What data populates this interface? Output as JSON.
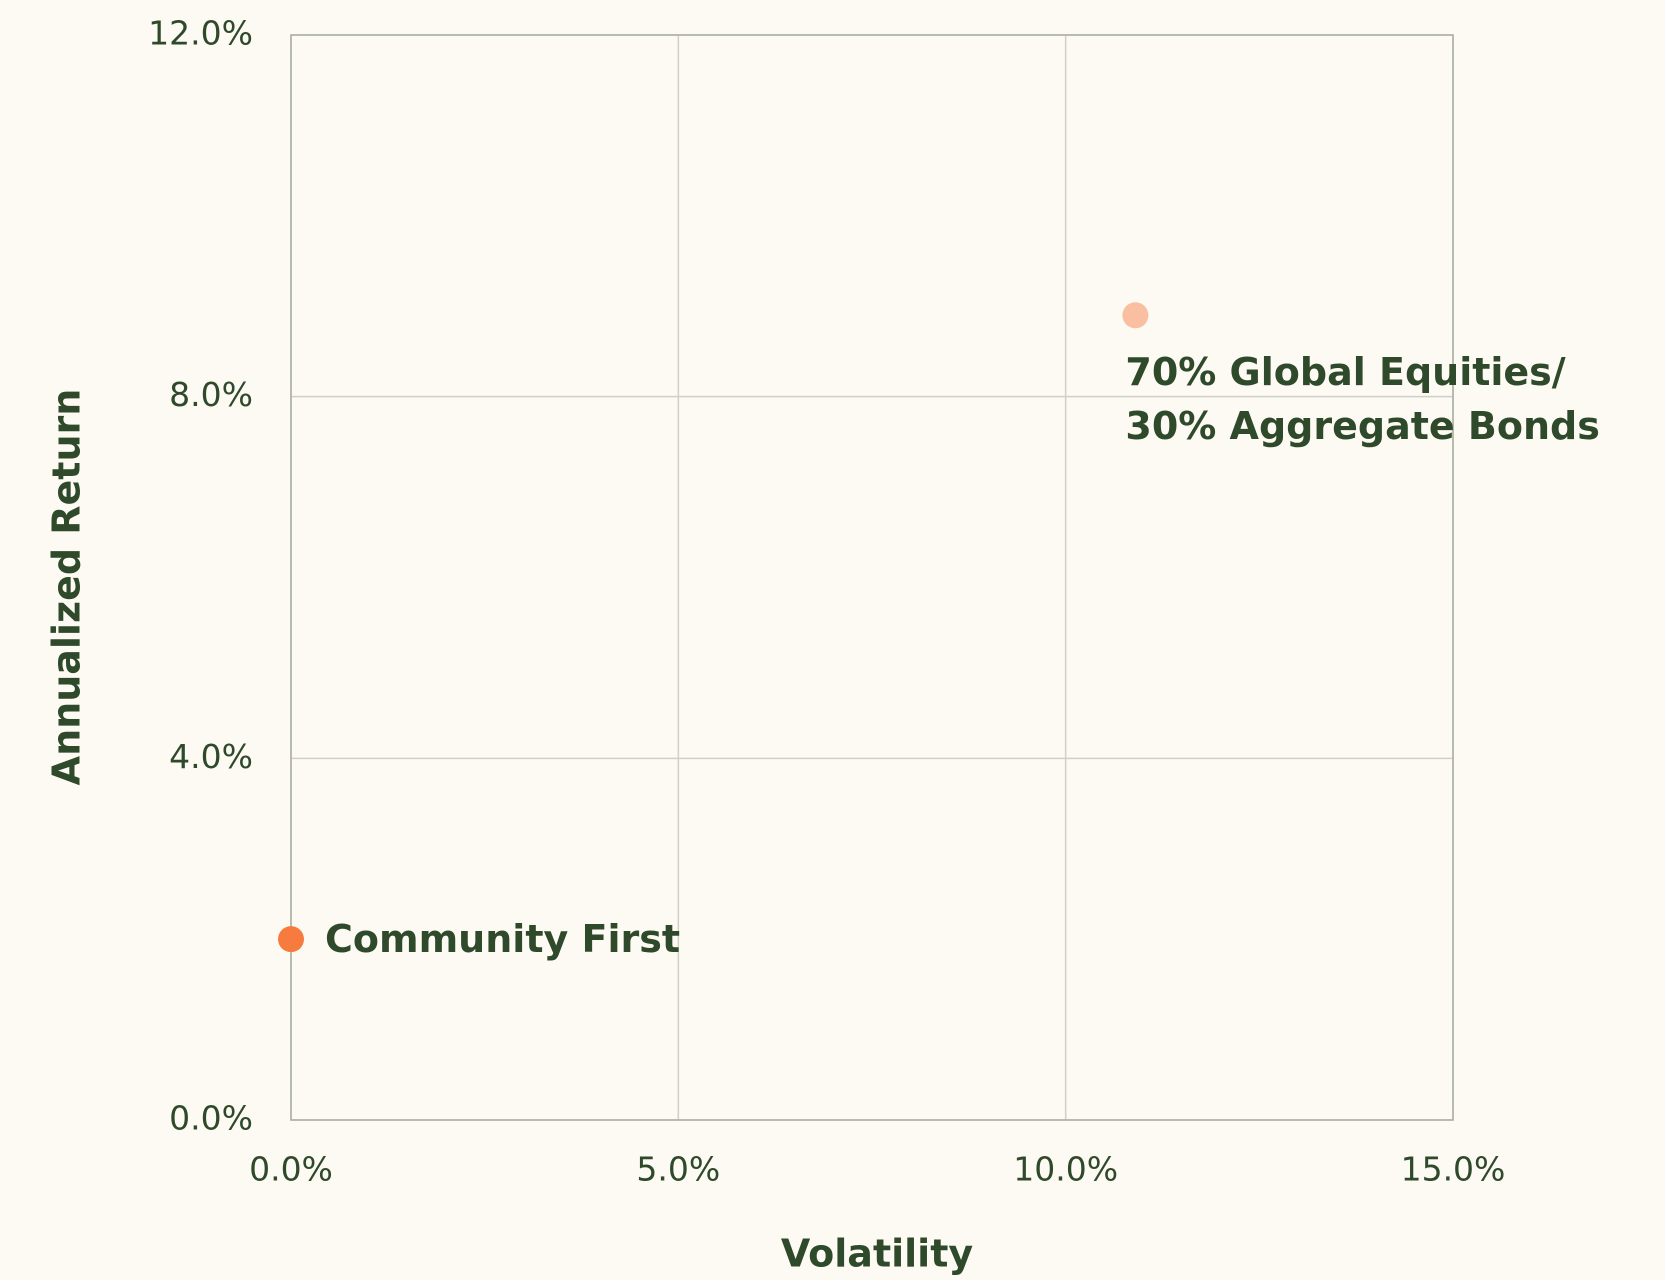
{
  "chart_data": {
    "type": "scatter",
    "xlabel": "Volatility",
    "ylabel": "Annualized Return",
    "series": [
      {
        "name": "Community First",
        "color": "#f77a3f",
        "x": [
          0.0
        ],
        "values": [
          2.0
        ]
      },
      {
        "name": "70% Global Equities/\n30% Aggregate Bonds",
        "color": "#f9bfa0",
        "x": [
          10.9
        ],
        "values": [
          8.9
        ]
      }
    ],
    "xlim": [
      0,
      15
    ],
    "xticks": [
      {
        "value": 0,
        "label": "0.0%"
      },
      {
        "value": 5,
        "label": "5.0%"
      },
      {
        "value": 10,
        "label": "10.0%"
      },
      {
        "value": 15,
        "label": "15.0%"
      }
    ],
    "ylim": [
      0,
      12
    ],
    "yticks": [
      {
        "value": 0,
        "label": "0.0%"
      },
      {
        "value": 4,
        "label": "4.0%"
      },
      {
        "value": 8,
        "label": "8.0%"
      },
      {
        "value": 12,
        "label": "12.0%"
      }
    ],
    "grid": true
  }
}
